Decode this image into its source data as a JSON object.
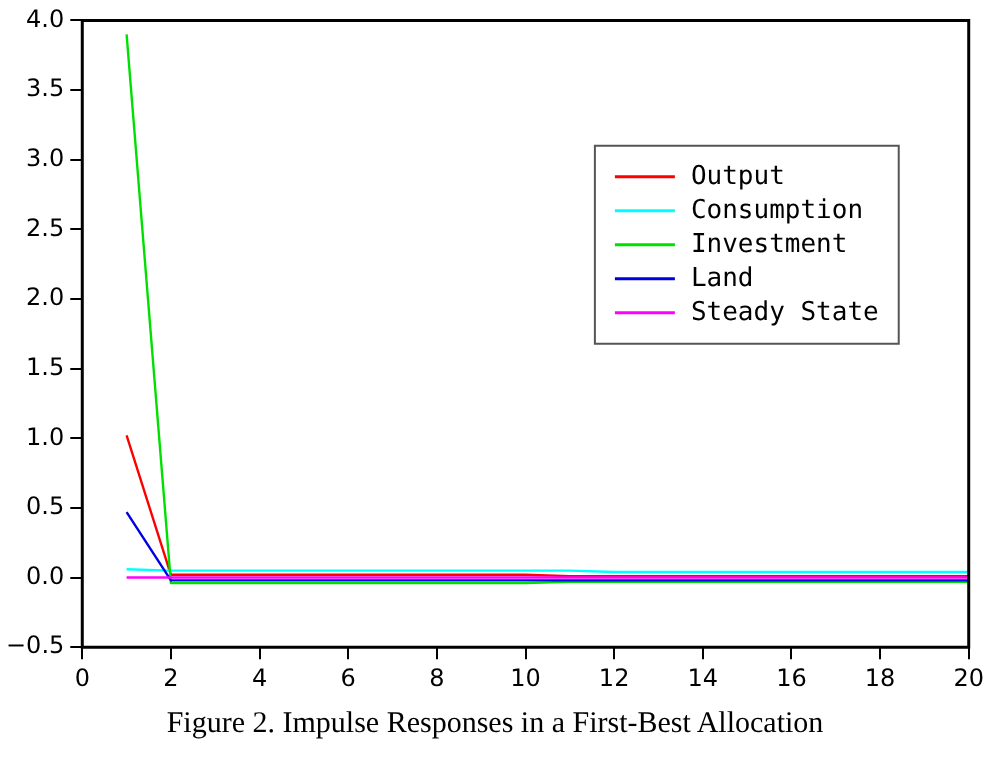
{
  "chart_data": {
    "type": "line",
    "annotations": [
      "Figure 2. Impulse Responses in a First-Best Allocation"
    ],
    "x": [
      1,
      2,
      3,
      4,
      5,
      6,
      7,
      8,
      9,
      10,
      11,
      12,
      13,
      14,
      15,
      16,
      17,
      18,
      19,
      20
    ],
    "series": [
      {
        "name": "Output",
        "color": "#ff0000",
        "values": [
          1.02,
          0.02,
          0.02,
          0.02,
          0.02,
          0.02,
          0.02,
          0.02,
          0.02,
          0.02,
          0.01,
          0.01,
          0.01,
          0.01,
          0.01,
          0.01,
          0.01,
          0.01,
          0.01,
          0.01
        ]
      },
      {
        "name": "Consumption",
        "color": "#00ffff",
        "values": [
          0.06,
          0.05,
          0.05,
          0.05,
          0.05,
          0.05,
          0.05,
          0.05,
          0.05,
          0.05,
          0.05,
          0.04,
          0.04,
          0.04,
          0.04,
          0.04,
          0.04,
          0.04,
          0.04,
          0.04
        ]
      },
      {
        "name": "Investment",
        "color": "#00e000",
        "values": [
          3.9,
          -0.04,
          -0.04,
          -0.04,
          -0.04,
          -0.04,
          -0.04,
          -0.04,
          -0.04,
          -0.04,
          -0.03,
          -0.03,
          -0.03,
          -0.03,
          -0.03,
          -0.03,
          -0.03,
          -0.03,
          -0.03,
          -0.03
        ]
      },
      {
        "name": "Land",
        "color": "#0000e0",
        "values": [
          0.47,
          -0.02,
          -0.02,
          -0.02,
          -0.02,
          -0.02,
          -0.02,
          -0.02,
          -0.02,
          -0.02,
          -0.02,
          -0.02,
          -0.02,
          -0.02,
          -0.02,
          -0.02,
          -0.02,
          -0.02,
          -0.02,
          -0.02
        ]
      },
      {
        "name": "Steady State",
        "color": "#ff00ff",
        "values": [
          0,
          0,
          0,
          0,
          0,
          0,
          0,
          0,
          0,
          0,
          0,
          0,
          0,
          0,
          0,
          0,
          0,
          0,
          0,
          0
        ]
      }
    ],
    "xlim": [
      0,
      20
    ],
    "xticks": [
      0,
      2,
      4,
      6,
      8,
      10,
      12,
      14,
      16,
      18,
      20
    ],
    "ylim": [
      -0.5,
      4.0
    ],
    "yticks": [
      {
        "value": -0.5,
        "label": "−0.5"
      },
      {
        "value": 0,
        "label": "0.0"
      },
      {
        "value": 0.5,
        "label": "0.5"
      },
      {
        "value": 1,
        "label": "1.0"
      },
      {
        "value": 1.5,
        "label": "1.5"
      },
      {
        "value": 2,
        "label": "2.0"
      },
      {
        "value": 2.5,
        "label": "2.5"
      },
      {
        "value": 3,
        "label": "3.0"
      },
      {
        "value": 3.5,
        "label": "3.5"
      },
      {
        "value": 4,
        "label": "4.0"
      }
    ],
    "grid": false,
    "legend": "right",
    "marker": "none",
    "line_style": "solid"
  }
}
